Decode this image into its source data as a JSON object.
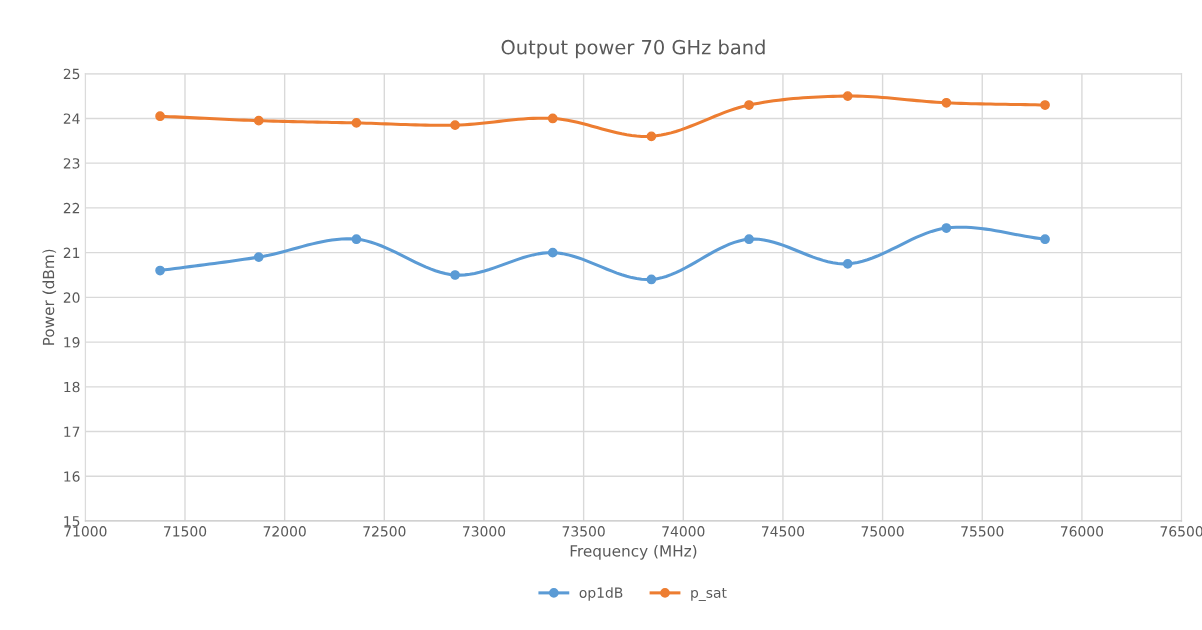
{
  "chart_data": {
    "type": "line",
    "title": "Output power 70 GHz band",
    "xlabel": "Frequency (MHz)",
    "ylabel": "Power (dBm)",
    "x": [
      71375,
      71870,
      72360,
      72855,
      73345,
      73840,
      74330,
      74825,
      75320,
      75815
    ],
    "series": [
      {
        "name": "op1dB",
        "color": "#5b9bd5",
        "values": [
          20.6,
          20.9,
          21.3,
          20.5,
          21.0,
          20.4,
          21.3,
          20.75,
          21.55,
          21.3
        ]
      },
      {
        "name": "p_sat",
        "color": "#ed7d31",
        "values": [
          24.05,
          23.95,
          23.9,
          23.85,
          24.0,
          23.6,
          24.3,
          24.5,
          24.35,
          24.3
        ]
      }
    ],
    "xlim": [
      71000,
      76500
    ],
    "xticks": [
      71000,
      71500,
      72000,
      72500,
      73000,
      73500,
      74000,
      74500,
      75000,
      75500,
      76000,
      76500
    ],
    "ylim": [
      15,
      25
    ],
    "yticks": [
      15,
      16,
      17,
      18,
      19,
      20,
      21,
      22,
      23,
      24,
      25
    ],
    "grid": true,
    "legend": "bottom",
    "marker": "circle",
    "line_style": "solid"
  }
}
